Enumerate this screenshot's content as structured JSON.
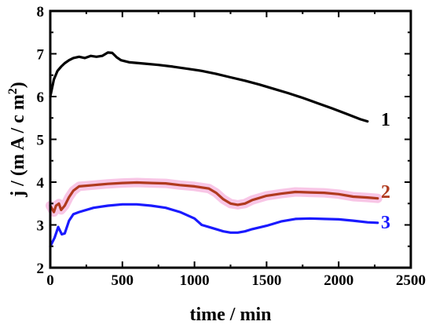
{
  "chart_data": {
    "type": "line",
    "xlabel": "time / min",
    "ylabel_parts": {
      "prefix": "j / (m A / c m",
      "sup": "2",
      "suffix": ")"
    },
    "xlim": [
      0,
      2500
    ],
    "ylim": [
      2,
      8
    ],
    "xticks": [
      0,
      500,
      1000,
      1500,
      2000,
      2500
    ],
    "yticks": [
      2,
      3,
      4,
      5,
      6,
      7,
      8
    ],
    "grid": false,
    "series": [
      {
        "label": "1",
        "color": "#000000",
        "x": [
          0,
          25,
          50,
          75,
          100,
          130,
          160,
          200,
          240,
          280,
          320,
          360,
          400,
          430,
          460,
          490,
          550,
          650,
          750,
          850,
          950,
          1050,
          1150,
          1250,
          1350,
          1450,
          1550,
          1650,
          1750,
          1850,
          1950,
          2050,
          2150,
          2200
        ],
        "y": [
          6.0,
          6.4,
          6.6,
          6.7,
          6.78,
          6.85,
          6.9,
          6.93,
          6.9,
          6.95,
          6.93,
          6.95,
          7.03,
          7.02,
          6.92,
          6.85,
          6.8,
          6.77,
          6.74,
          6.7,
          6.65,
          6.6,
          6.53,
          6.45,
          6.37,
          6.28,
          6.18,
          6.08,
          5.97,
          5.85,
          5.73,
          5.6,
          5.47,
          5.42
        ]
      },
      {
        "label": "2",
        "color": "#b03a1e",
        "x": [
          0,
          25,
          40,
          60,
          75,
          100,
          130,
          160,
          200,
          300,
          400,
          500,
          600,
          700,
          800,
          900,
          1000,
          1100,
          1150,
          1200,
          1250,
          1300,
          1350,
          1400,
          1500,
          1600,
          1700,
          1800,
          1900,
          2000,
          2100,
          2200,
          2270
        ],
        "y": [
          3.45,
          3.3,
          3.45,
          3.5,
          3.35,
          3.45,
          3.65,
          3.8,
          3.9,
          3.93,
          3.96,
          3.98,
          3.99,
          3.98,
          3.97,
          3.93,
          3.9,
          3.85,
          3.75,
          3.6,
          3.5,
          3.47,
          3.5,
          3.58,
          3.68,
          3.73,
          3.77,
          3.76,
          3.75,
          3.72,
          3.66,
          3.64,
          3.62
        ]
      },
      {
        "label": "3",
        "color": "#1a1aff",
        "x": [
          0,
          30,
          55,
          80,
          100,
          130,
          160,
          200,
          300,
          400,
          500,
          600,
          700,
          800,
          900,
          1000,
          1050,
          1100,
          1200,
          1250,
          1300,
          1350,
          1400,
          1500,
          1600,
          1700,
          1800,
          1900,
          2000,
          2100,
          2200,
          2270
        ],
        "y": [
          2.5,
          2.7,
          2.95,
          2.78,
          2.8,
          3.1,
          3.25,
          3.3,
          3.4,
          3.45,
          3.48,
          3.48,
          3.45,
          3.4,
          3.3,
          3.15,
          3.0,
          2.95,
          2.85,
          2.82,
          2.82,
          2.85,
          2.9,
          2.98,
          3.08,
          3.14,
          3.15,
          3.14,
          3.13,
          3.1,
          3.06,
          3.05
        ]
      }
    ]
  }
}
